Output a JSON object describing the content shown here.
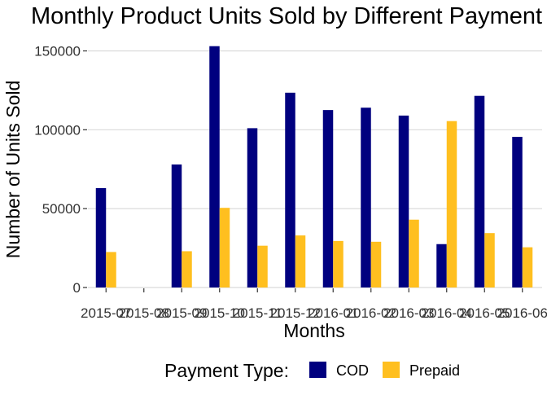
{
  "chart_data": {
    "type": "bar",
    "title": "Monthly Product Units Sold by Different Payment t",
    "xlabel": "Months",
    "ylabel": "Number of Units Sold",
    "categories": [
      "2015-07",
      "2015-08",
      "2015-09",
      "2015-10",
      "2015-11",
      "2015-12",
      "2016-01",
      "2016-02",
      "2016-03",
      "2016-04",
      "2016-05",
      "2016-06"
    ],
    "series": [
      {
        "name": "COD",
        "color": "#00007F",
        "values": [
          63000,
          null,
          78000,
          153000,
          101000,
          123500,
          112500,
          114000,
          109000,
          27500,
          121500,
          95500
        ]
      },
      {
        "name": "Prepaid",
        "color": "#FFBF1F",
        "values": [
          22500,
          null,
          23000,
          50500,
          26500,
          33000,
          29500,
          29000,
          43000,
          105500,
          34500,
          25500
        ]
      }
    ],
    "ylim": [
      0,
      160000
    ],
    "yticks": [
      0,
      50000,
      100000,
      150000
    ],
    "ytick_labels": [
      "0",
      "50000",
      "100000",
      "150000"
    ],
    "grid": true,
    "legend": {
      "title": "Payment Type:",
      "position": "bottom"
    }
  }
}
